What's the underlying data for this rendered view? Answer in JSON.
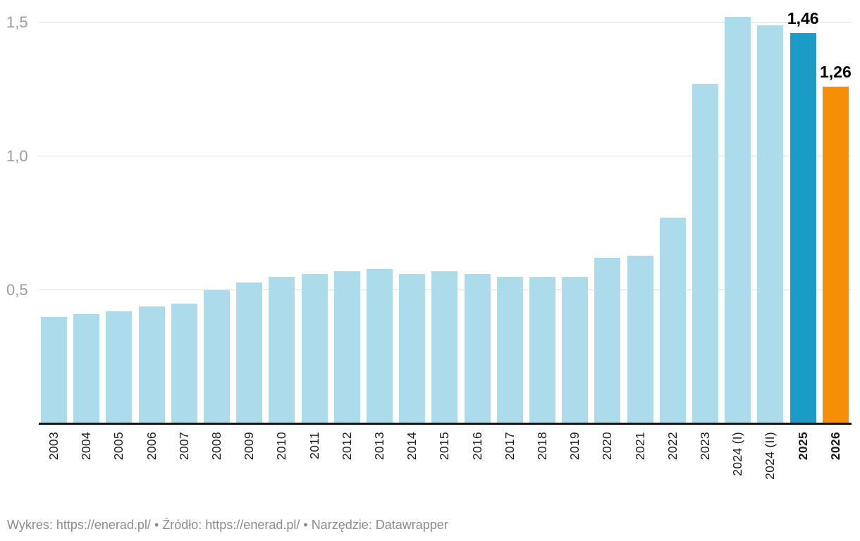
{
  "chart_data": {
    "type": "bar",
    "title": "",
    "xlabel": "",
    "ylabel": "",
    "ylim": [
      0,
      1.58
    ],
    "grid": "horizontal",
    "legend": "none",
    "decimal_separator": ",",
    "yticks": [
      {
        "value": 0.5,
        "label": "0,5"
      },
      {
        "value": 1.0,
        "label": "1,0"
      },
      {
        "value": 1.5,
        "label": "1,5"
      }
    ],
    "categories": [
      "2003",
      "2004",
      "2005",
      "2006",
      "2007",
      "2008",
      "2009",
      "2010",
      "2011",
      "2012",
      "2013",
      "2014",
      "2015",
      "2016",
      "2017",
      "2018",
      "2019",
      "2020",
      "2021",
      "2022",
      "2023",
      "2024 (I)",
      "2024 (II)",
      "2025",
      "2026"
    ],
    "values": [
      0.4,
      0.41,
      0.42,
      0.44,
      0.45,
      0.5,
      0.53,
      0.55,
      0.56,
      0.57,
      0.58,
      0.56,
      0.57,
      0.56,
      0.55,
      0.55,
      0.55,
      0.62,
      0.63,
      0.77,
      1.27,
      1.52,
      1.49,
      1.46,
      1.26
    ],
    "bars": [
      {
        "label": "2003",
        "value": 0.4,
        "color": "default",
        "bold": false,
        "value_label": ""
      },
      {
        "label": "2004",
        "value": 0.41,
        "color": "default",
        "bold": false,
        "value_label": ""
      },
      {
        "label": "2005",
        "value": 0.42,
        "color": "default",
        "bold": false,
        "value_label": ""
      },
      {
        "label": "2006",
        "value": 0.44,
        "color": "default",
        "bold": false,
        "value_label": ""
      },
      {
        "label": "2007",
        "value": 0.45,
        "color": "default",
        "bold": false,
        "value_label": ""
      },
      {
        "label": "2008",
        "value": 0.5,
        "color": "default",
        "bold": false,
        "value_label": ""
      },
      {
        "label": "2009",
        "value": 0.53,
        "color": "default",
        "bold": false,
        "value_label": ""
      },
      {
        "label": "2010",
        "value": 0.55,
        "color": "default",
        "bold": false,
        "value_label": ""
      },
      {
        "label": "2011",
        "value": 0.56,
        "color": "default",
        "bold": false,
        "value_label": ""
      },
      {
        "label": "2012",
        "value": 0.57,
        "color": "default",
        "bold": false,
        "value_label": ""
      },
      {
        "label": "2013",
        "value": 0.58,
        "color": "default",
        "bold": false,
        "value_label": ""
      },
      {
        "label": "2014",
        "value": 0.56,
        "color": "default",
        "bold": false,
        "value_label": ""
      },
      {
        "label": "2015",
        "value": 0.57,
        "color": "default",
        "bold": false,
        "value_label": ""
      },
      {
        "label": "2016",
        "value": 0.56,
        "color": "default",
        "bold": false,
        "value_label": ""
      },
      {
        "label": "2017",
        "value": 0.55,
        "color": "default",
        "bold": false,
        "value_label": ""
      },
      {
        "label": "2018",
        "value": 0.55,
        "color": "default",
        "bold": false,
        "value_label": ""
      },
      {
        "label": "2019",
        "value": 0.55,
        "color": "default",
        "bold": false,
        "value_label": ""
      },
      {
        "label": "2020",
        "value": 0.62,
        "color": "default",
        "bold": false,
        "value_label": ""
      },
      {
        "label": "2021",
        "value": 0.63,
        "color": "default",
        "bold": false,
        "value_label": ""
      },
      {
        "label": "2022",
        "value": 0.77,
        "color": "default",
        "bold": false,
        "value_label": ""
      },
      {
        "label": "2023",
        "value": 1.27,
        "color": "default",
        "bold": false,
        "value_label": ""
      },
      {
        "label": "2024 (I)",
        "value": 1.52,
        "color": "default",
        "bold": false,
        "value_label": ""
      },
      {
        "label": "2024 (II)",
        "value": 1.49,
        "color": "default",
        "bold": false,
        "value_label": ""
      },
      {
        "label": "2025",
        "value": 1.46,
        "color": "teal",
        "bold": true,
        "value_label": "1,46"
      },
      {
        "label": "2026",
        "value": 1.26,
        "color": "orange",
        "bold": true,
        "value_label": "1,26"
      }
    ],
    "colors": {
      "default": "#acdbec",
      "teal": "#1b9cc7",
      "orange": "#f78f06",
      "gridline": "#dedede",
      "axis_line": "#161616",
      "ytick_text": "#9c9c9c",
      "xtick_text": "#1a1a1a",
      "value_label_text": "#000000"
    }
  },
  "footer": {
    "chart_label": "Wykres:",
    "chart_link": "https://enerad.pl/",
    "separator": "•",
    "source_label": "Źródło:",
    "source_link": "https://enerad.pl/",
    "tool_label": "Narzędzie:",
    "tool_name": "Datawrapper"
  }
}
